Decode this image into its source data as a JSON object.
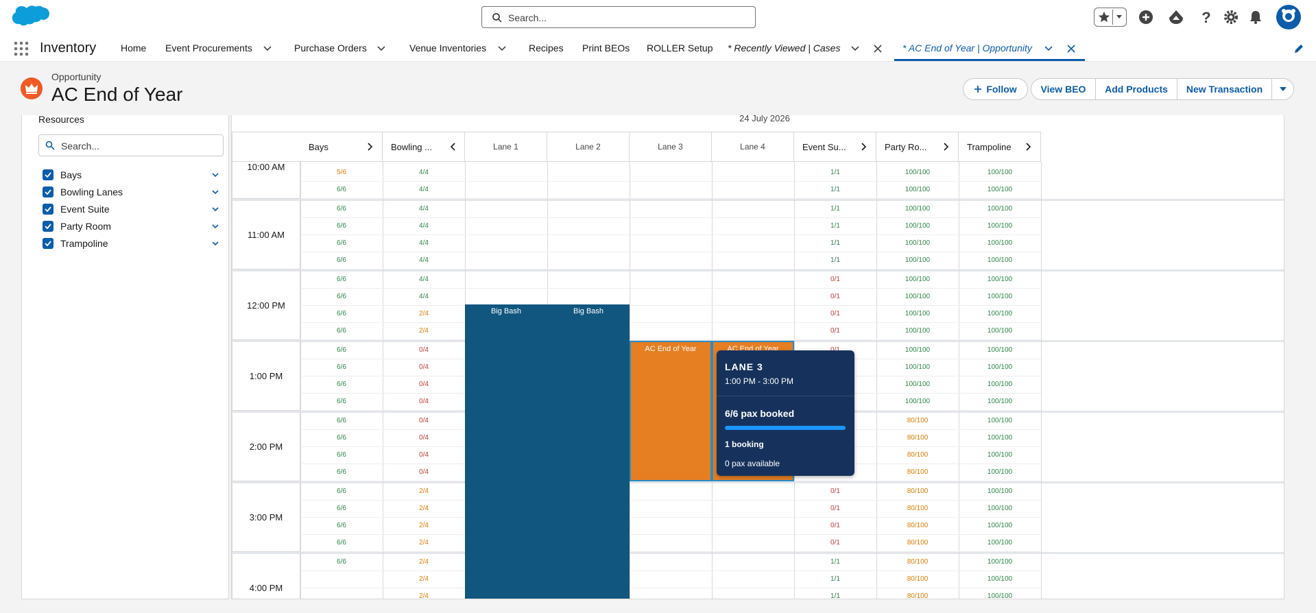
{
  "header": {
    "search_placeholder": "Search...",
    "icons": [
      "salesforce-logo",
      "favorites-star-icon",
      "chevron-down-icon",
      "add-icon",
      "trailhead-icon",
      "help-icon",
      "settings-gear-icon",
      "bell-icon",
      "user-avatar"
    ]
  },
  "nav": {
    "app_name": "Inventory",
    "items": [
      {
        "label": "Home"
      },
      {
        "label": "Event Procurements"
      },
      {
        "label": "Purchase Orders"
      },
      {
        "label": "Venue Inventories"
      },
      {
        "label": "Recipes"
      },
      {
        "label": "Print BEOs"
      },
      {
        "label": "ROLLER Setup"
      },
      {
        "label": "* Recently Viewed | Cases"
      },
      {
        "label": "* AC End of Year | Opportunity"
      }
    ]
  },
  "record": {
    "object_label": "Opportunity",
    "title": "AC End of Year",
    "buttons": {
      "follow": "Follow",
      "view_beo": "View BEO",
      "add_products": "Add Products",
      "new_transaction": "New Transaction"
    }
  },
  "resources": {
    "title": "Resources",
    "search_placeholder": "Search...",
    "items": [
      {
        "label": "Bays",
        "checked": true
      },
      {
        "label": "Bowling Lanes",
        "checked": true
      },
      {
        "label": "Event Suite",
        "checked": true
      },
      {
        "label": "Party Room",
        "checked": true
      },
      {
        "label": "Trampoline",
        "checked": true
      }
    ]
  },
  "calendar": {
    "date": "24 July 2026",
    "columns": [
      "Bays",
      "Bowling ...",
      "Lane 1",
      "Lane 2",
      "Lane 3",
      "Lane 4",
      "Event Su...",
      "Party Ro...",
      "Trampoline"
    ],
    "hours": [
      "10:00 AM",
      "11:00 AM",
      "12:00 PM",
      "1:00 PM",
      "2:00 PM",
      "3:00 PM",
      "4:00 PM"
    ],
    "bays": [
      "5/6",
      "6/6",
      "6/6",
      "6/6",
      "6/6",
      "6/6",
      "6/6",
      "6/6",
      "6/6",
      "6/6",
      "6/6",
      "6/6",
      "6/6",
      "6/6",
      "6/6",
      "6/6",
      "6/6",
      "6/6",
      "6/6",
      "6/6",
      "6/6",
      "6/6",
      "6/6"
    ],
    "bowling": [
      "4/4",
      "4/4",
      "4/4",
      "4/4",
      "4/4",
      "4/4",
      "4/4",
      "4/4",
      "2/4",
      "2/4",
      "0/4",
      "0/4",
      "0/4",
      "0/4",
      "0/4",
      "0/4",
      "0/4",
      "0/4",
      "2/4",
      "2/4",
      "2/4",
      "2/4",
      "2/4",
      "2/4",
      "2/4"
    ],
    "event_suite": [
      "1/1",
      "1/1",
      "1/1",
      "1/1",
      "1/1",
      "1/1",
      "0/1",
      "0/1",
      "0/1",
      "0/1",
      "0/1",
      "",
      "",
      "",
      "",
      "",
      "",
      "",
      "0/1",
      "0/1",
      "0/1",
      "0/1",
      "1/1",
      "1/1",
      "1/1"
    ],
    "party_room": [
      "100/100",
      "100/100",
      "100/100",
      "100/100",
      "100/100",
      "100/100",
      "100/100",
      "100/100",
      "100/100",
      "100/100",
      "100/100",
      "100/100",
      "100/100",
      "100/100",
      "80/100",
      "80/100",
      "80/100",
      "80/100",
      "80/100",
      "80/100",
      "80/100",
      "80/100",
      "80/100",
      "80/100",
      "80/100"
    ],
    "trampoline": [
      "100/100",
      "100/100",
      "100/100",
      "100/100",
      "100/100",
      "100/100",
      "100/100",
      "100/100",
      "100/100",
      "100/100",
      "100/100",
      "100/100",
      "100/100",
      "100/100",
      "100/100",
      "100/100",
      "100/100",
      "100/100",
      "100/100",
      "100/100",
      "100/100",
      "100/100",
      "100/100",
      "100/100",
      "100/100"
    ],
    "bookings": [
      {
        "label": "Big Bash",
        "lane": "Lane 1"
      },
      {
        "label": "Big Bash",
        "lane": "Lane 2"
      },
      {
        "label": "AC End of Year",
        "lane": "Lane 3"
      },
      {
        "label": "AC End of Year",
        "lane": "Lane 4"
      }
    ],
    "tooltip": {
      "title": "LANE 3",
      "time": "1:00 PM - 3:00 PM",
      "pax": "6/6 pax booked",
      "booked_fraction": 1.0,
      "bookings": "1 booking",
      "available": "0 pax available"
    }
  },
  "colors": {
    "brand": "#0b5cab",
    "booking_blue": "#11567f",
    "booking_orange": "#e67e22",
    "ok_green": "#2e844a",
    "warn_orange": "#dd7a01",
    "full_red": "#c23934"
  }
}
